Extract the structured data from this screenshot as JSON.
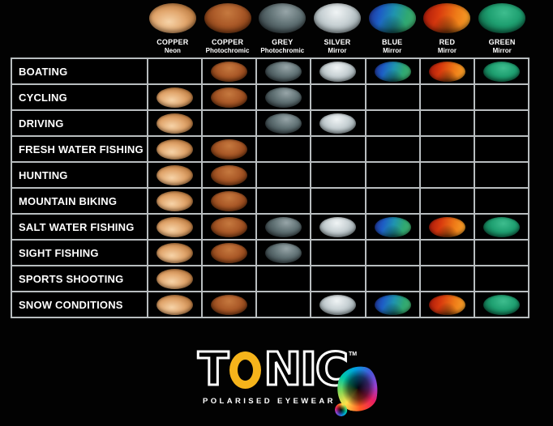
{
  "page": {
    "background": "#020202",
    "grid_line_color": "#b8bdbf"
  },
  "chart_data": {
    "type": "table",
    "description": "Lens-to-activity suitability matrix; a coloured lens swatch marks each recommended lens/activity combination",
    "columns": [
      {
        "label": "COPPER",
        "sublabel": "Neon",
        "lens": "copper_neon"
      },
      {
        "label": "COPPER",
        "sublabel": "Photochromic",
        "lens": "copper_photochromic"
      },
      {
        "label": "GREY",
        "sublabel": "Photochromic",
        "lens": "grey_photochromic"
      },
      {
        "label": "SILVER",
        "sublabel": "Mirror",
        "lens": "silver_mirror"
      },
      {
        "label": "BLUE",
        "sublabel": "Mirror",
        "lens": "blue_mirror"
      },
      {
        "label": "RED",
        "sublabel": "Mirror",
        "lens": "red_mirror"
      },
      {
        "label": "GREEN",
        "sublabel": "Mirror",
        "lens": "green_mirror"
      }
    ],
    "rows": [
      {
        "label": "BOATING",
        "cells": [
          0,
          1,
          1,
          1,
          1,
          1,
          1
        ]
      },
      {
        "label": "CYCLING",
        "cells": [
          1,
          1,
          1,
          0,
          0,
          0,
          0
        ]
      },
      {
        "label": "DRIVING",
        "cells": [
          1,
          0,
          1,
          1,
          0,
          0,
          0
        ]
      },
      {
        "label": "FRESH WATER FISHING",
        "cells": [
          1,
          1,
          0,
          0,
          0,
          0,
          0
        ]
      },
      {
        "label": "HUNTING",
        "cells": [
          1,
          1,
          0,
          0,
          0,
          0,
          0
        ]
      },
      {
        "label": "MOUNTAIN BIKING",
        "cells": [
          1,
          1,
          0,
          0,
          0,
          0,
          0
        ]
      },
      {
        "label": "SALT WATER FISHING",
        "cells": [
          1,
          1,
          1,
          1,
          1,
          1,
          1
        ]
      },
      {
        "label": "SIGHT FISHING",
        "cells": [
          1,
          1,
          1,
          0,
          0,
          0,
          0
        ]
      },
      {
        "label": "SPORTS SHOOTING",
        "cells": [
          1,
          0,
          0,
          0,
          0,
          0,
          0
        ]
      },
      {
        "label": "SNOW CONDITIONS",
        "cells": [
          1,
          1,
          0,
          1,
          1,
          1,
          1
        ]
      }
    ]
  },
  "lens_styles": {
    "copper_neon": {
      "type": "radial",
      "pos": "42% 62%",
      "colors": [
        "#f6d3a8",
        "#e2a76e",
        "#bc7c42",
        "#3f2009"
      ]
    },
    "copper_photochromic": {
      "type": "radial",
      "pos": "50% 32%",
      "colors": [
        "#c5793f",
        "#ac5b29",
        "#8a4218",
        "#371a06"
      ]
    },
    "grey_photochromic": {
      "type": "radial",
      "pos": "58% 28%",
      "colors": [
        "#97a5a8",
        "#617275",
        "#3f4c50",
        "#141b1d"
      ]
    },
    "silver_mirror": {
      "type": "radial",
      "pos": "48% 30%",
      "colors": [
        "#f0f4f5",
        "#c9d2d5",
        "#a0acb0",
        "#4d585c"
      ]
    },
    "blue_mirror": {
      "type": "linear",
      "angle": "105deg",
      "colors": [
        "#222e8e",
        "#1d5dc5",
        "#1f93b0",
        "#2fa873",
        "#45b06a"
      ]
    },
    "red_mirror": {
      "type": "linear",
      "angle": "100deg",
      "colors": [
        "#a8180b",
        "#d93b0e",
        "#ee7a17",
        "#f9a82c"
      ]
    },
    "green_mirror": {
      "type": "radial",
      "pos": "55% 32%",
      "colors": [
        "#3ebd8e",
        "#1fa071",
        "#117350",
        "#042d1c"
      ]
    }
  },
  "logo": {
    "brand_left": "T",
    "brand_right": "NIC",
    "trademark": "TM",
    "tagline": "POLARISED EYEWEAR",
    "ring_color": "#f6b41b",
    "blob_colors": [
      "#ffe14a",
      "#7ed957",
      "#00c9a7",
      "#00a1e0",
      "#4757d8",
      "#9b3fd1",
      "#e91e63",
      "#ff5722",
      "#ffe14a"
    ]
  }
}
